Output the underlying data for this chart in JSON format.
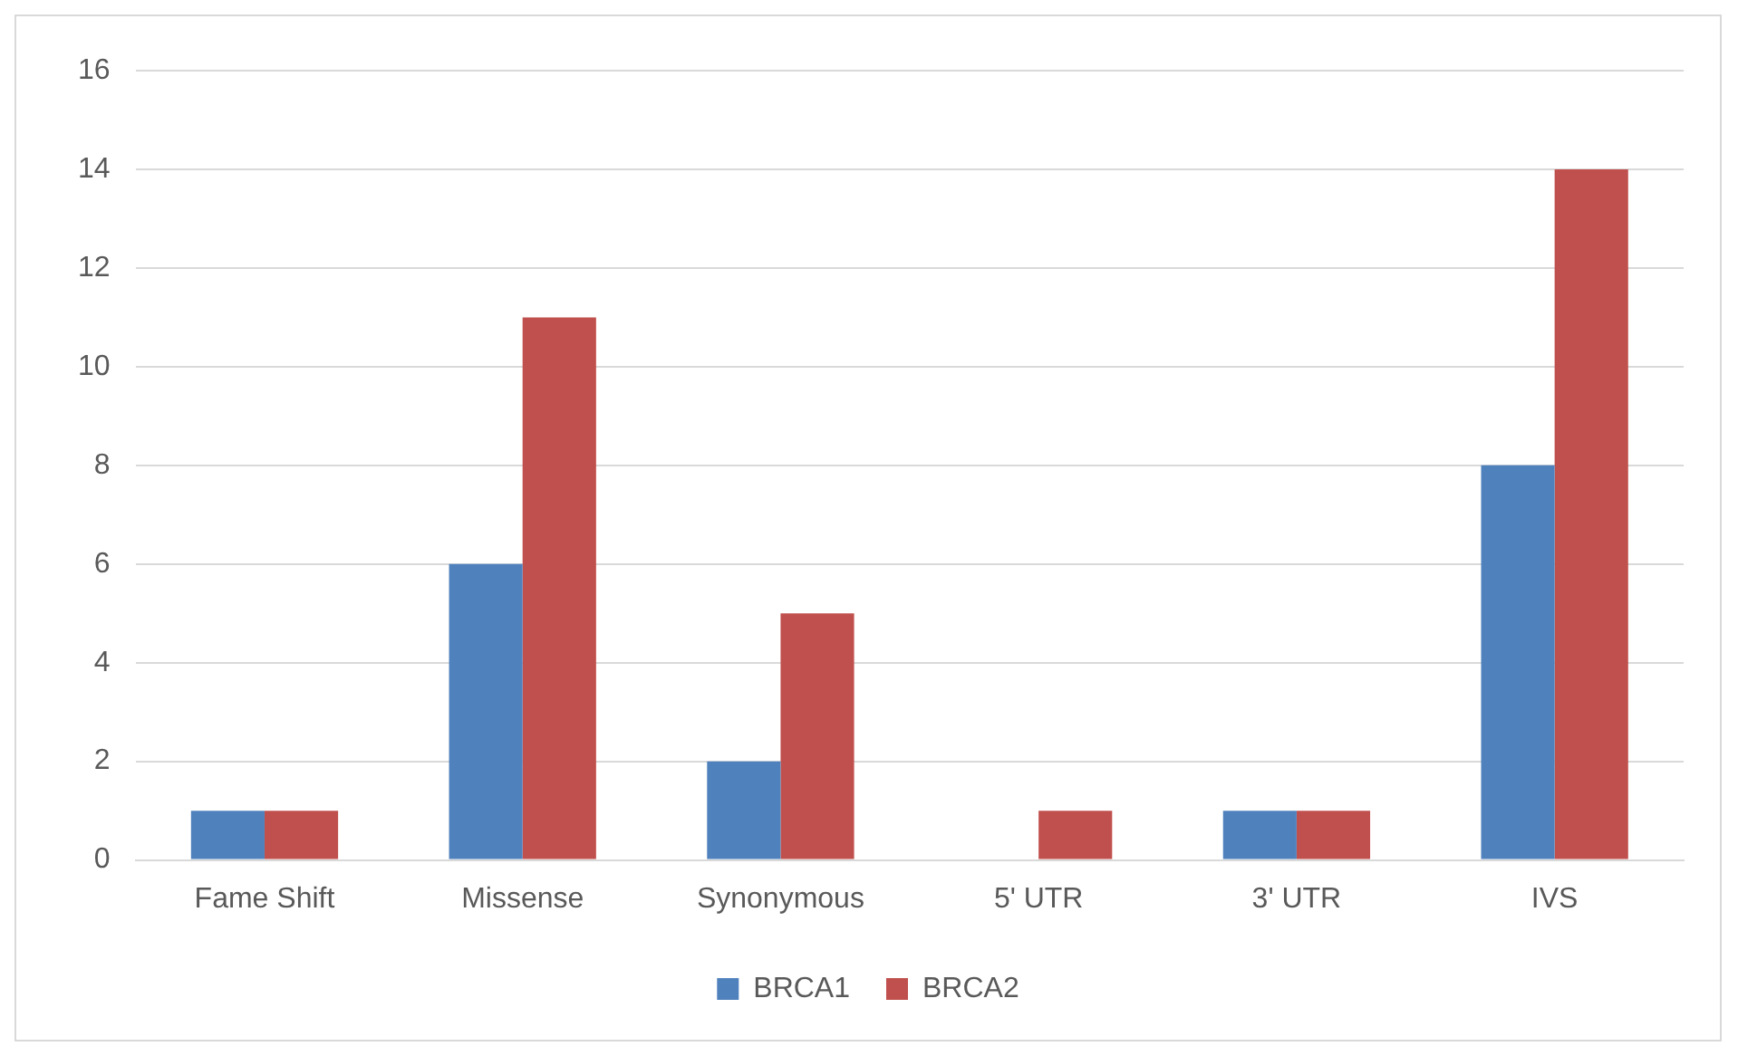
{
  "chart_data": {
    "type": "bar",
    "categories": [
      "Fame Shift",
      "Missense",
      "Synonymous",
      "5' UTR",
      "3' UTR",
      "IVS"
    ],
    "series": [
      {
        "name": "BRCA1",
        "color": "#4f81bd",
        "values": [
          1,
          6,
          2,
          0,
          1,
          8
        ]
      },
      {
        "name": "BRCA2",
        "color": "#c0504d",
        "values": [
          1,
          11,
          5,
          1,
          1,
          14
        ]
      }
    ],
    "ylim": [
      0,
      16
    ],
    "yticks": [
      0,
      2,
      4,
      6,
      8,
      10,
      12,
      14,
      16
    ],
    "grid": "y",
    "legend": "bottom"
  }
}
